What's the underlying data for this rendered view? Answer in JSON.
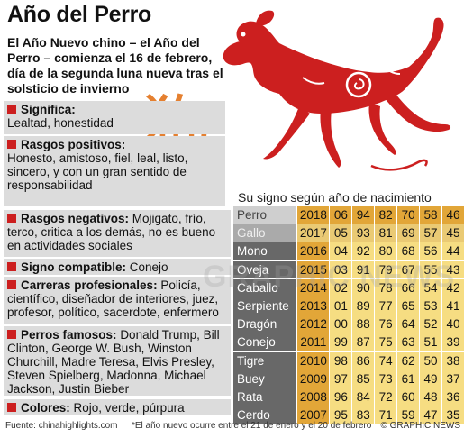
{
  "title": "Año del Perro",
  "subtitle": "El Año Nuevo chino – el Año del Perro – comienza el 16 de febrero, día de la segunda luna nueva tras el solsticio de invierno",
  "chinese_character": "狗",
  "panels": {
    "significa": {
      "heading": "Significa:",
      "text": "Lealtad, honestidad"
    },
    "positivos": {
      "heading": "Rasgos positivos:",
      "text": "Honesto, amistoso, fiel, leal, listo, sincero, y con un gran sentido de responsabilidad"
    },
    "negativos": {
      "heading": "Rasgos negativos:",
      "text": "Mojigato, frío, terco, critica a los demás, no es bueno en actividades sociales"
    },
    "compatible": {
      "heading": "Signo compatible:",
      "text": "Conejo"
    },
    "carreras": {
      "heading": "Carreras profesionales:",
      "text": "Policía, científico, diseñador de interiores, juez, profesor, político, sacerdote, enfermero"
    },
    "famosos": {
      "heading": "Perros famosos:",
      "text": "Donald Trump, Bill Clinton, George W. Bush, Winston Churchill, Madre Teresa, Elvis Presley, Steven Spielberg, Madonna, Michael Jackson, Justin Bieber"
    },
    "colores": {
      "heading": "Colores:",
      "text": "Rojo, verde, púrpura"
    }
  },
  "table": {
    "title": "Su signo según año de nacimiento",
    "rows": [
      {
        "sign": "Perro",
        "cells": [
          "2018",
          "06",
          "94",
          "82",
          "70",
          "58",
          "46"
        ]
      },
      {
        "sign": "Gallo",
        "cells": [
          "2017",
          "05",
          "93",
          "81",
          "69",
          "57",
          "45"
        ]
      },
      {
        "sign": "Mono",
        "cells": [
          "2016",
          "04",
          "92",
          "80",
          "68",
          "56",
          "44"
        ]
      },
      {
        "sign": "Oveja",
        "cells": [
          "2015",
          "03",
          "91",
          "79",
          "67",
          "55",
          "43"
        ]
      },
      {
        "sign": "Caballo",
        "cells": [
          "2014",
          "02",
          "90",
          "78",
          "66",
          "54",
          "42"
        ]
      },
      {
        "sign": "Serpiente",
        "cells": [
          "2013",
          "01",
          "89",
          "77",
          "65",
          "53",
          "41"
        ]
      },
      {
        "sign": "Dragón",
        "cells": [
          "2012",
          "00",
          "88",
          "76",
          "64",
          "52",
          "40"
        ]
      },
      {
        "sign": "Conejo",
        "cells": [
          "2011",
          "99",
          "87",
          "75",
          "63",
          "51",
          "39"
        ]
      },
      {
        "sign": "Tigre",
        "cells": [
          "2010",
          "98",
          "86",
          "74",
          "62",
          "50",
          "38"
        ]
      },
      {
        "sign": "Buey",
        "cells": [
          "2009",
          "97",
          "85",
          "73",
          "61",
          "49",
          "37"
        ]
      },
      {
        "sign": "Rata",
        "cells": [
          "2008",
          "96",
          "84",
          "72",
          "60",
          "48",
          "36"
        ]
      },
      {
        "sign": "Cerdo",
        "cells": [
          "2007",
          "95",
          "83",
          "71",
          "59",
          "47",
          "35"
        ]
      }
    ]
  },
  "footer": {
    "source": "Fuente: chinahighlights.com",
    "note": "*El año nuevo ocurre entre el 21 de enero y el 20 de febrero",
    "credit": "© GRAPHIC NEWS"
  },
  "watermark": "GRAPHIC NEWS",
  "colors": {
    "accent_red": "#cc1f1f",
    "character_orange": "#e47a25",
    "year_gold": "#e2a638",
    "cell_yellow": "#f6dd82",
    "sign_grey": "#686868",
    "panel_grey": "#dcdcdc"
  }
}
